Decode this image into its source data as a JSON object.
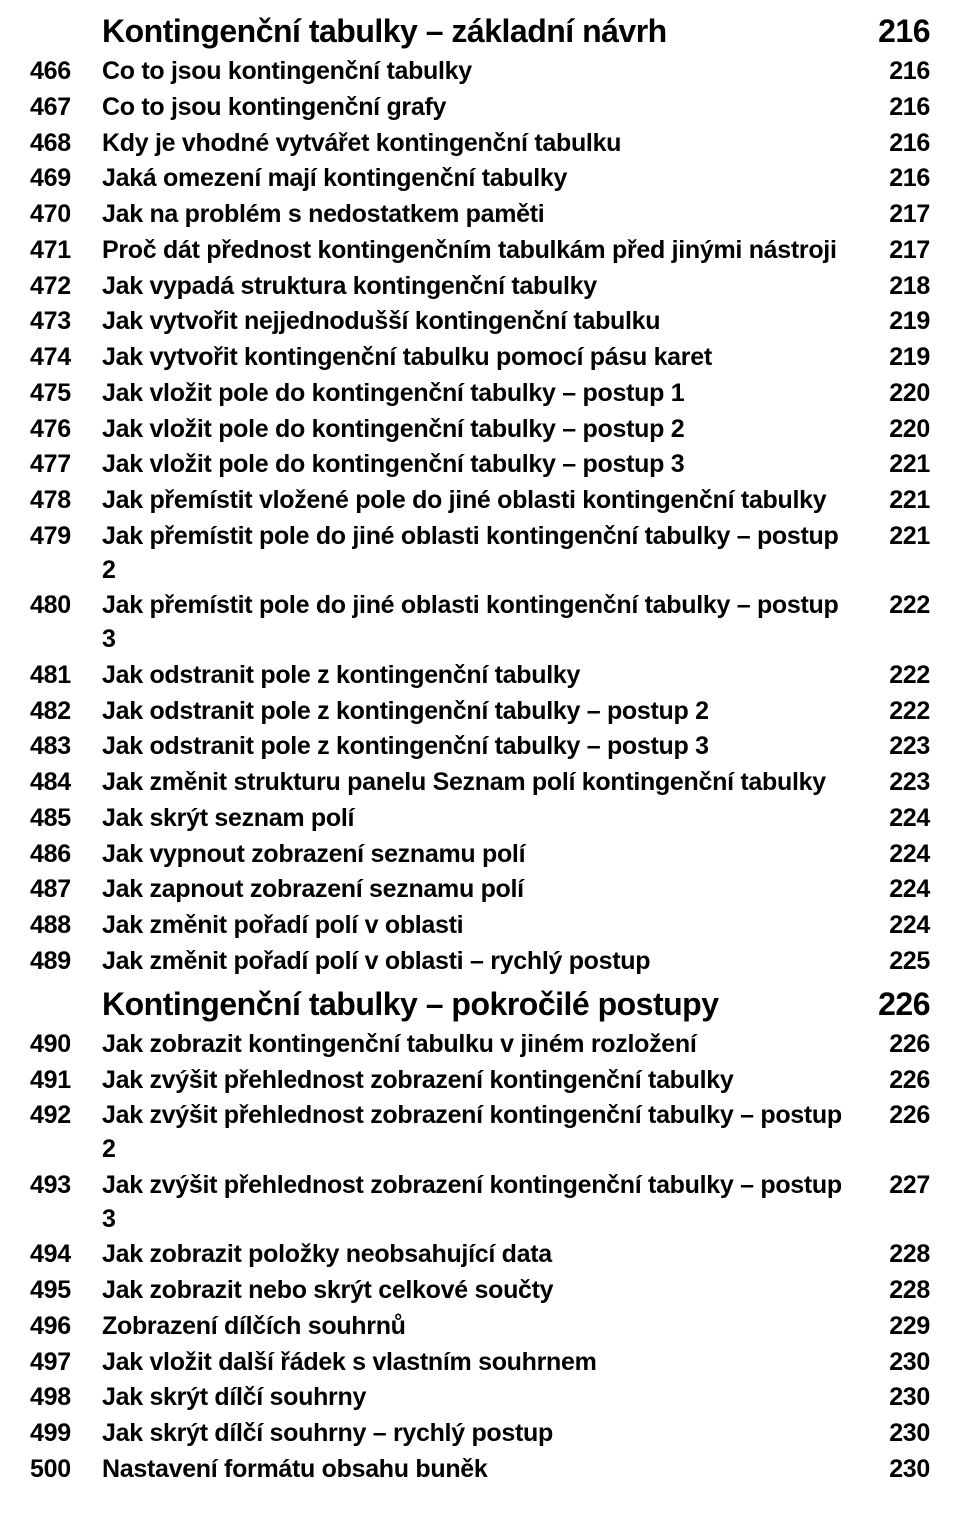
{
  "sections": [
    {
      "heading": {
        "title": "Kontingenční tabulky – základní návrh",
        "page": "216"
      },
      "entries": [
        {
          "num": "466",
          "title": "Co to jsou kontingenční tabulky",
          "page": "216"
        },
        {
          "num": "467",
          "title": "Co to jsou kontingenční grafy",
          "page": "216"
        },
        {
          "num": "468",
          "title": "Kdy je vhodné vytvářet kontingenční tabulku",
          "page": "216"
        },
        {
          "num": "469",
          "title": "Jaká omezení mají kontingenční tabulky",
          "page": "216"
        },
        {
          "num": "470",
          "title": "Jak na problém s nedostatkem paměti",
          "page": "217"
        },
        {
          "num": "471",
          "title": "Proč dát přednost kontingenčním tabulkám před jinými nástroji",
          "page": "217"
        },
        {
          "num": "472",
          "title": "Jak vypadá struktura kontingenční tabulky",
          "page": "218"
        },
        {
          "num": "473",
          "title": "Jak vytvořit nejjednodušší kontingenční tabulku",
          "page": "219"
        },
        {
          "num": "474",
          "title": "Jak vytvořit kontingenční tabulku pomocí pásu karet",
          "page": "219"
        },
        {
          "num": "475",
          "title": "Jak vložit pole do kontingenční tabulky – postup 1",
          "page": "220"
        },
        {
          "num": "476",
          "title": "Jak vložit pole do kontingenční tabulky – postup 2",
          "page": "220"
        },
        {
          "num": "477",
          "title": "Jak vložit pole do kontingenční tabulky – postup 3",
          "page": "221"
        },
        {
          "num": "478",
          "title": "Jak přemístit vložené pole do jiné oblasti kontingenční tabulky",
          "page": "221"
        },
        {
          "num": "479",
          "title": "Jak přemístit pole do jiné oblasti kontingenční tabulky – postup 2",
          "page": "221"
        },
        {
          "num": "480",
          "title": "Jak přemístit pole do jiné oblasti kontingenční tabulky – postup 3",
          "page": "222"
        },
        {
          "num": "481",
          "title": "Jak odstranit pole z kontingenční tabulky",
          "page": "222"
        },
        {
          "num": "482",
          "title": "Jak odstranit pole z kontingenční tabulky – postup 2",
          "page": "222"
        },
        {
          "num": "483",
          "title": "Jak odstranit pole z kontingenční tabulky – postup 3",
          "page": "223"
        },
        {
          "num": "484",
          "title": "Jak změnit strukturu panelu Seznam polí kontingenční tabulky",
          "page": "223"
        },
        {
          "num": "485",
          "title": "Jak skrýt seznam polí",
          "page": "224"
        },
        {
          "num": "486",
          "title": "Jak vypnout zobrazení seznamu polí",
          "page": "224"
        },
        {
          "num": "487",
          "title": "Jak zapnout zobrazení seznamu polí",
          "page": "224"
        },
        {
          "num": "488",
          "title": "Jak změnit pořadí polí v oblasti",
          "page": "224"
        },
        {
          "num": "489",
          "title": "Jak změnit pořadí polí v oblasti – rychlý postup",
          "page": "225"
        }
      ]
    },
    {
      "heading": {
        "title": "Kontingenční tabulky – pokročilé postupy",
        "page": "226"
      },
      "entries": [
        {
          "num": "490",
          "title": "Jak zobrazit kontingenční tabulku v jiném rozložení",
          "page": "226"
        },
        {
          "num": "491",
          "title": "Jak zvýšit přehlednost zobrazení kontingenční tabulky",
          "page": "226"
        },
        {
          "num": "492",
          "title": "Jak zvýšit přehlednost zobrazení kontingenční tabulky – postup 2",
          "page": "226"
        },
        {
          "num": "493",
          "title": "Jak zvýšit přehlednost zobrazení kontingenční tabulky – postup 3",
          "page": "227"
        },
        {
          "num": "494",
          "title": "Jak zobrazit položky neobsahující data",
          "page": "228"
        },
        {
          "num": "495",
          "title": "Jak zobrazit nebo skrýt celkové součty",
          "page": "228"
        },
        {
          "num": "496",
          "title": "Zobrazení dílčích souhrnů",
          "page": "229"
        },
        {
          "num": "497",
          "title": "Jak vložit další řádek s vlastním souhrnem",
          "page": "230"
        },
        {
          "num": "498",
          "title": "Jak skrýt dílčí souhrny",
          "page": "230"
        },
        {
          "num": "499",
          "title": "Jak skrýt dílčí souhrny – rychlý postup",
          "page": "230"
        },
        {
          "num": "500",
          "title": "Nastavení formátu obsahu buněk",
          "page": "230"
        }
      ]
    }
  ]
}
